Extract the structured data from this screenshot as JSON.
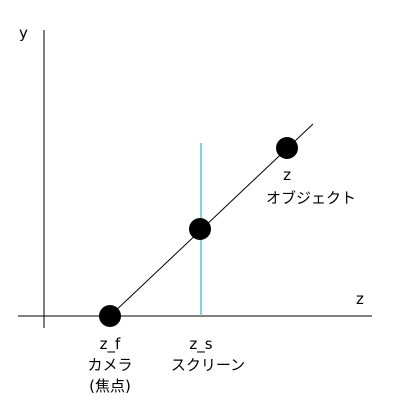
{
  "axes": {
    "y_label": "y",
    "z_label": "z"
  },
  "points": {
    "camera": {
      "symbol": "z_f",
      "name": "カメラ",
      "note": "(焦点)"
    },
    "screen": {
      "symbol": "z_s",
      "name": "スクリーン"
    },
    "object": {
      "symbol": "z",
      "name": "オブジェクト"
    }
  },
  "colors": {
    "line": "#000000",
    "screen_line": "#5bc0de",
    "point": "#000000"
  }
}
